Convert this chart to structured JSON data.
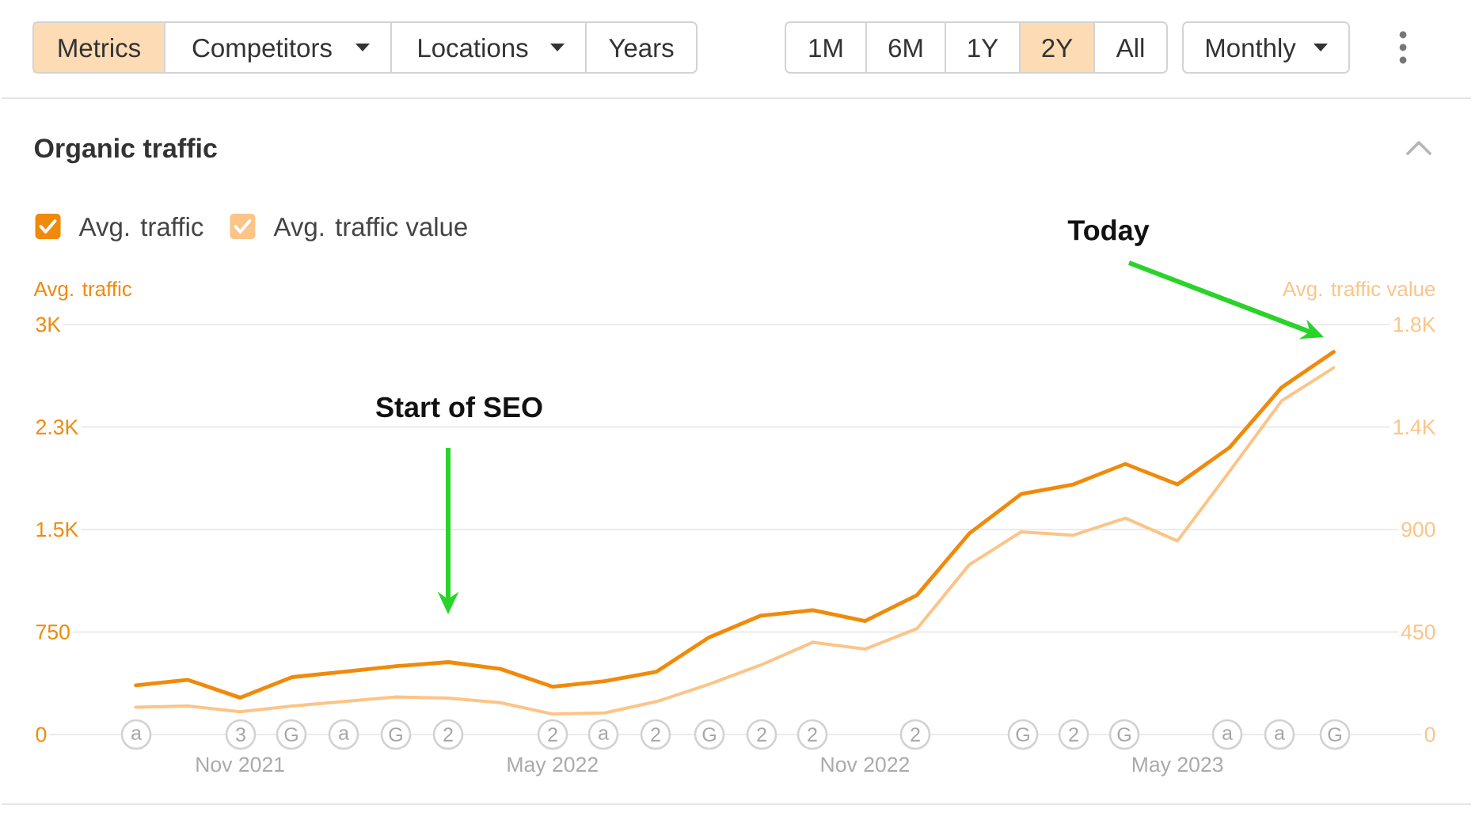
{
  "chart_data": {
    "type": "line",
    "title": "Organic traffic",
    "ylabel": "Avg. traffic",
    "y2label": "Avg. traffic value",
    "x": [
      "2021-09",
      "2021-10",
      "2021-11",
      "2021-12",
      "2022-01",
      "2022-02",
      "2022-03",
      "2022-04",
      "2022-05",
      "2022-06",
      "2022-07",
      "2022-08",
      "2022-09",
      "2022-10",
      "2022-11",
      "2022-12",
      "2023-01",
      "2023-02",
      "2023-03",
      "2023-04",
      "2023-05",
      "2023-06",
      "2023-07",
      "2023-08"
    ],
    "series": [
      {
        "name": "Avg. traffic",
        "color": "#f08a0a",
        "values": [
          360,
          400,
          270,
          420,
          460,
          500,
          530,
          480,
          350,
          390,
          460,
          710,
          870,
          910,
          830,
          1020,
          1470,
          1760,
          1830,
          1980,
          1830,
          2100,
          2540,
          2800
        ]
      },
      {
        "name": "Avg. traffic value",
        "color": "#fcc487",
        "axis": "y2",
        "values": [
          120,
          125,
          100,
          125,
          145,
          165,
          160,
          140,
          90,
          95,
          145,
          220,
          305,
          405,
          375,
          465,
          745,
          890,
          875,
          950,
          850,
          1155,
          1465,
          1610
        ]
      }
    ],
    "xlim": [
      "2021-07",
      "2023-10"
    ],
    "xticks": [
      {
        "value": "2021-11",
        "label": "Nov 2021"
      },
      {
        "value": "2022-05",
        "label": "May 2022"
      },
      {
        "value": "2022-11",
        "label": "Nov 2022"
      },
      {
        "value": "2023-05",
        "label": "May 2023"
      }
    ],
    "ylim": [
      0,
      3000
    ],
    "yticks": [
      0,
      750,
      {
        "value": 1500,
        "label": "1.5K"
      },
      {
        "value": 2250,
        "label": "2.3K"
      },
      {
        "value": 3000,
        "label": "3K"
      }
    ],
    "y2lim": [
      0,
      1800
    ],
    "y2ticks": [
      0,
      450,
      900,
      {
        "value": 1350,
        "label": "1.4K"
      },
      {
        "value": 1800,
        "label": "1.8K"
      }
    ],
    "grid": "y",
    "legend": "top left",
    "line_style": "solid",
    "annotations": [
      "Metrics",
      "Competitors",
      "Locations",
      "Years",
      "1M",
      "6M",
      "1Y",
      "2Y",
      "All",
      "Monthly",
      "a",
      "3",
      "G",
      "a",
      "G",
      "2",
      "2",
      "a",
      "2",
      "G",
      "2",
      "2",
      "2",
      "G",
      "2",
      "G",
      "a",
      "a",
      "G",
      "Start of SEO",
      "Today"
    ]
  }
}
